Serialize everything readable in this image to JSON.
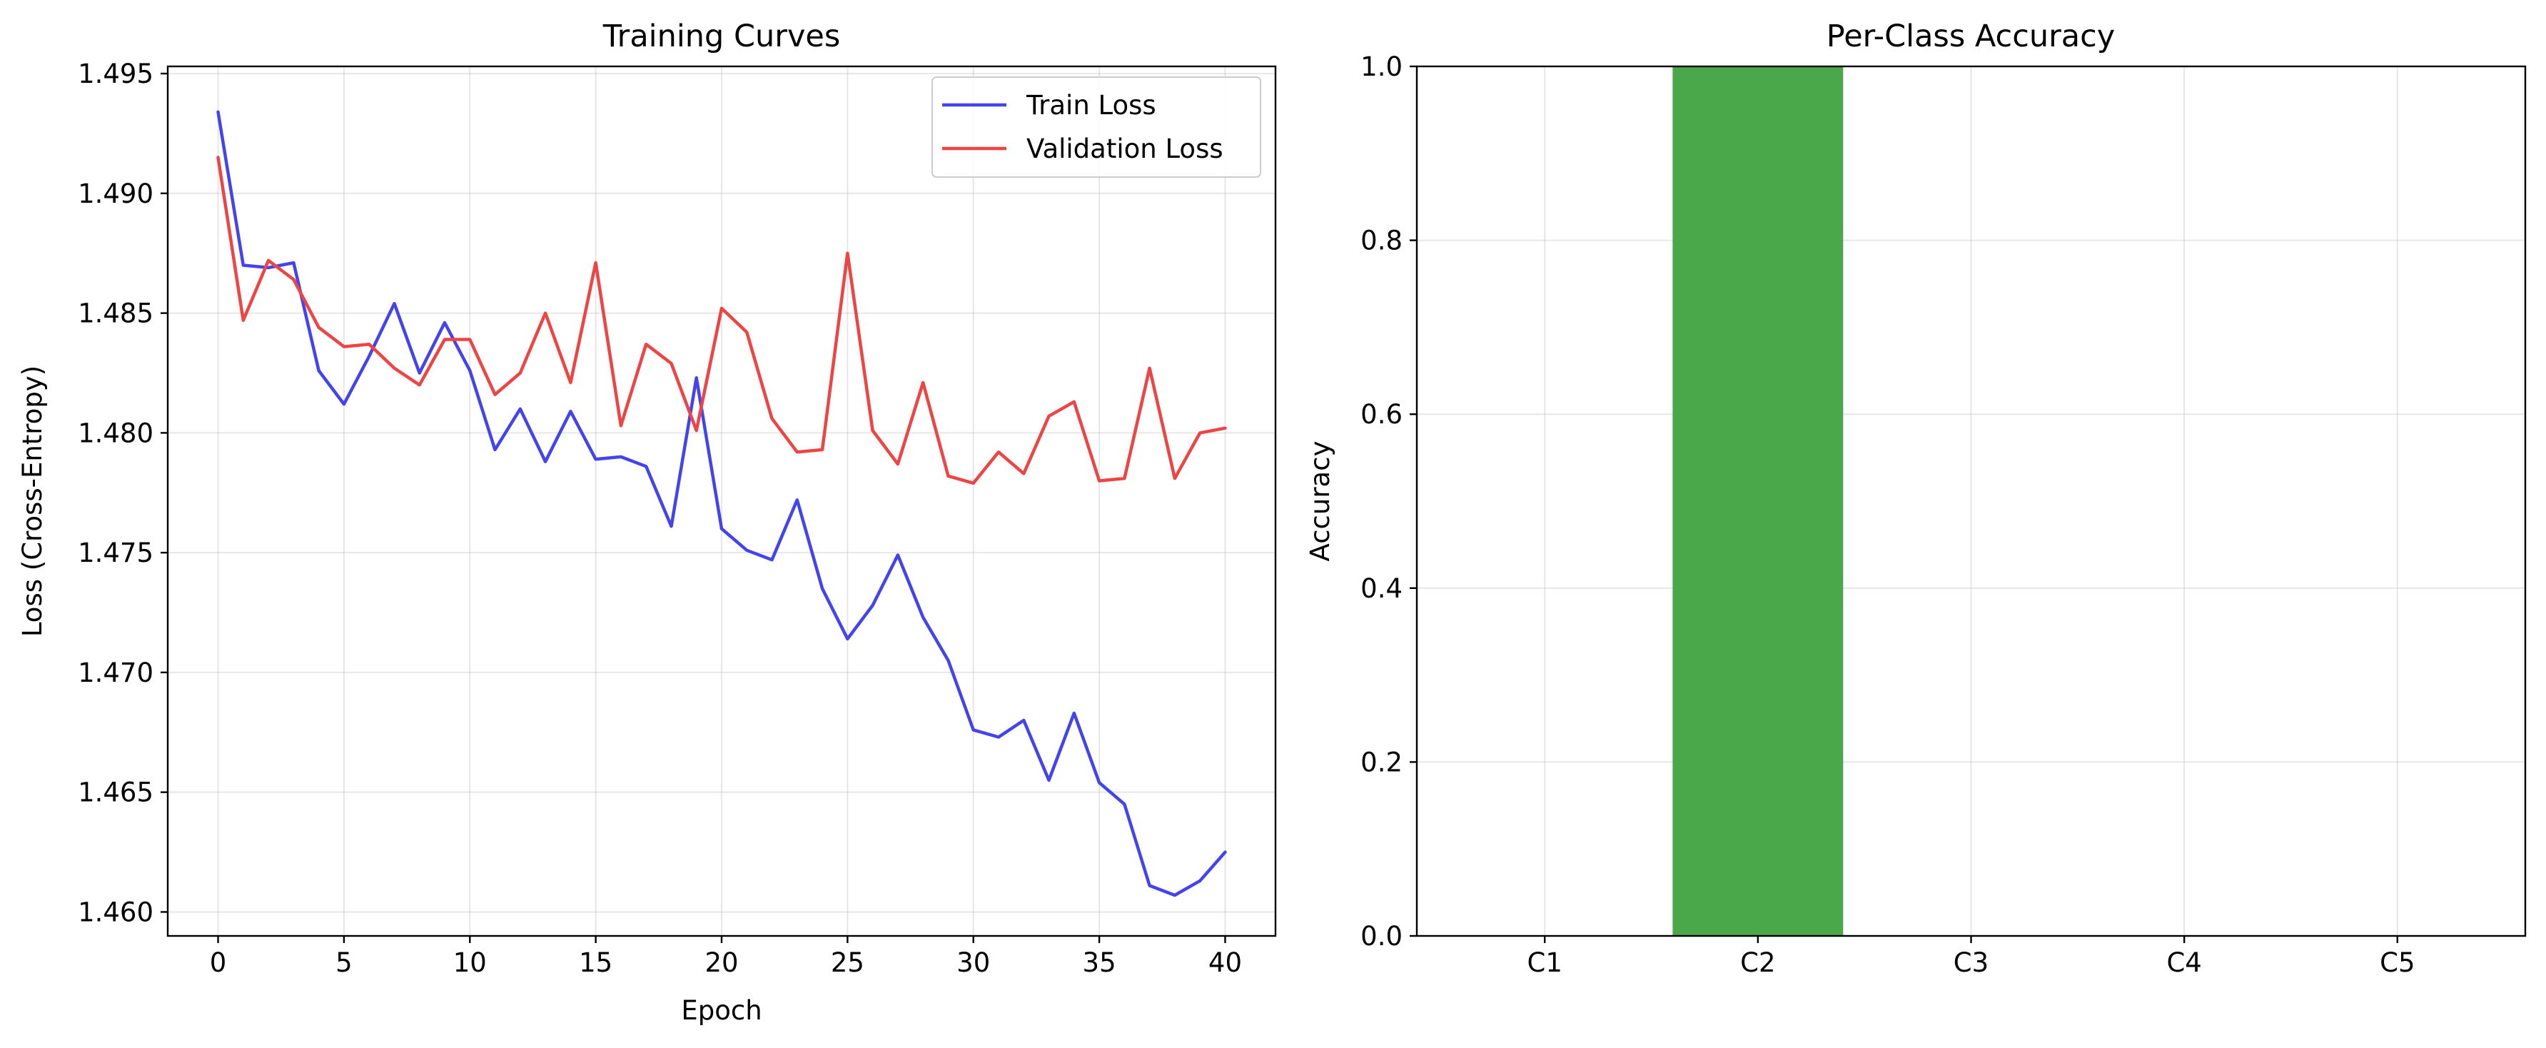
{
  "chart_data": [
    {
      "type": "line",
      "title": "Training Curves",
      "xlabel": "Epoch",
      "ylabel": "Loss (Cross-Entropy)",
      "xlim": [
        -2,
        42
      ],
      "ylim": [
        1.459,
        1.4953
      ],
      "xticks": [
        0,
        5,
        10,
        15,
        20,
        25,
        30,
        35,
        40
      ],
      "xtick_labels": [
        "0",
        "5",
        "10",
        "15",
        "20",
        "25",
        "30",
        "35",
        "40"
      ],
      "yticks": [
        1.46,
        1.465,
        1.47,
        1.475,
        1.48,
        1.485,
        1.49,
        1.495
      ],
      "ytick_labels": [
        "1.460",
        "1.465",
        "1.470",
        "1.475",
        "1.480",
        "1.485",
        "1.490",
        "1.495"
      ],
      "grid": true,
      "legend_position": "top-right",
      "x": [
        0,
        1,
        2,
        3,
        4,
        5,
        6,
        7,
        8,
        9,
        10,
        11,
        12,
        13,
        14,
        15,
        16,
        17,
        18,
        19,
        20,
        21,
        22,
        23,
        24,
        25,
        26,
        27,
        28,
        29,
        30,
        31,
        32,
        33,
        34,
        35,
        36,
        37,
        38,
        39,
        40
      ],
      "series": [
        {
          "name": "Train Loss",
          "color": "#4444ee",
          "values": [
            1.4934,
            1.487,
            1.4869,
            1.4871,
            1.4826,
            1.4812,
            1.4832,
            1.4854,
            1.4825,
            1.4846,
            1.4826,
            1.4793,
            1.481,
            1.4788,
            1.4809,
            1.4789,
            1.479,
            1.4786,
            1.4761,
            1.4823,
            1.476,
            1.4751,
            1.4747,
            1.4772,
            1.4735,
            1.4714,
            1.4728,
            1.4749,
            1.4723,
            1.4705,
            1.4676,
            1.4673,
            1.468,
            1.4655,
            1.4683,
            1.4654,
            1.4645,
            1.4611,
            1.4607,
            1.4613,
            1.4625
          ]
        },
        {
          "name": "Validation Loss",
          "color": "#ee4444",
          "values": [
            1.4915,
            1.4847,
            1.4872,
            1.4864,
            1.4844,
            1.4836,
            1.4837,
            1.4827,
            1.482,
            1.4839,
            1.4839,
            1.4816,
            1.4825,
            1.485,
            1.4821,
            1.4871,
            1.4803,
            1.4837,
            1.4829,
            1.4801,
            1.4852,
            1.4842,
            1.4806,
            1.4792,
            1.4793,
            1.4875,
            1.4801,
            1.4787,
            1.4821,
            1.4782,
            1.4779,
            1.4792,
            1.4783,
            1.4807,
            1.4813,
            1.478,
            1.4781,
            1.4827,
            1.4781,
            1.48,
            1.4802
          ]
        }
      ]
    },
    {
      "type": "bar",
      "title": "Per-Class Accuracy",
      "xlabel": "",
      "ylabel": "Accuracy",
      "categories": [
        "C1",
        "C2",
        "C3",
        "C4",
        "C5"
      ],
      "values": [
        0.0,
        1.0,
        0.0,
        0.0,
        0.0
      ],
      "bar_color": "#4aa74a",
      "ylim": [
        0,
        1.0
      ],
      "yticks": [
        0.0,
        0.2,
        0.4,
        0.6,
        0.8,
        1.0
      ],
      "ytick_labels": [
        "0.0",
        "0.2",
        "0.4",
        "0.6",
        "0.8",
        "1.0"
      ],
      "grid": true
    }
  ]
}
